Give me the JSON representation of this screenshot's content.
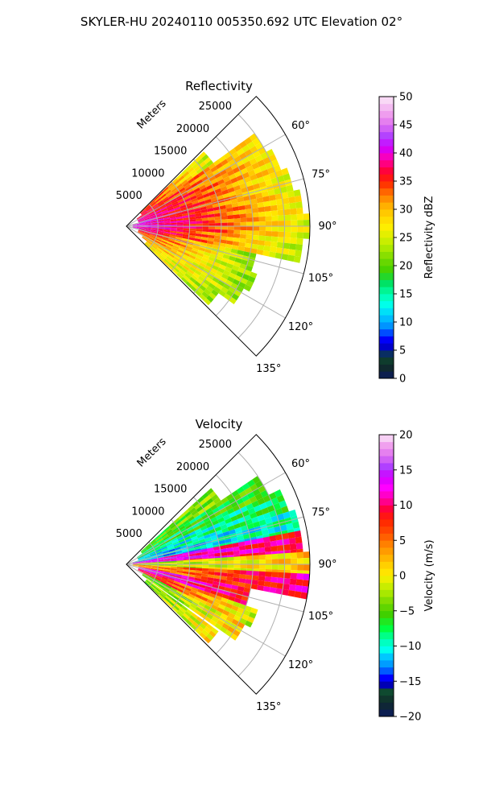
{
  "suptitle": "SKYLER-HU  20240110  005350.692 UTC Elevation 02°",
  "chart_data": [
    {
      "type": "heatmap",
      "projection": "polar-sector",
      "title": "Reflectivity",
      "range_axis_label": "Meters",
      "range_ticks": [
        5000,
        10000,
        15000,
        20000,
        25000
      ],
      "range_tick_labels": [
        "5000",
        "10000",
        "15000",
        "20000",
        "25000"
      ],
      "rmax": 29000,
      "azimuth_range_deg": [
        45,
        135
      ],
      "azimuth_ticks": [
        "60°",
        "75°",
        "90°",
        "105°",
        "120°",
        "135°"
      ],
      "grid": true,
      "colorbar": {
        "label": "Reflectivity dBZ",
        "min": 0,
        "max": 50,
        "ticks": [
          "0",
          "5",
          "10",
          "15",
          "20",
          "25",
          "30",
          "35",
          "40",
          "45",
          "50"
        ]
      },
      "rays": [
        {
          "az": 50,
          "r0": 3000,
          "r1": 17000,
          "dbz_near": 36,
          "dbz_far": 24
        },
        {
          "az": 58,
          "r0": 2000,
          "r1": 25000,
          "dbz_near": 37,
          "dbz_far": 27
        },
        {
          "az": 66,
          "r0": 2000,
          "r1": 26000,
          "dbz_near": 39,
          "dbz_far": 27
        },
        {
          "az": 74,
          "r0": 2000,
          "r1": 27000,
          "dbz_near": 40,
          "dbz_far": 25
        },
        {
          "az": 82,
          "r0": 1000,
          "r1": 28000,
          "dbz_near": 41,
          "dbz_far": 26
        },
        {
          "az": 90,
          "r0": 1000,
          "r1": 28500,
          "dbz_near": 42,
          "dbz_far": 25
        },
        {
          "az": 98,
          "r0": 1000,
          "r1": 28000,
          "dbz_near": 40,
          "dbz_far": 23
        },
        {
          "az": 106,
          "r0": 2000,
          "r1": 21000,
          "dbz_near": 37,
          "dbz_far": 21
        },
        {
          "az": 114,
          "r0": 2000,
          "r1": 22000,
          "dbz_near": 34,
          "dbz_far": 21
        },
        {
          "az": 122,
          "r0": 3000,
          "r1": 21000,
          "dbz_near": 31,
          "dbz_far": 22
        },
        {
          "az": 130,
          "r0": 4000,
          "r1": 18000,
          "dbz_near": 28,
          "dbz_far": 22
        }
      ]
    },
    {
      "type": "heatmap",
      "projection": "polar-sector",
      "title": "Velocity",
      "range_axis_label": "Meters",
      "range_ticks": [
        5000,
        10000,
        15000,
        20000,
        25000
      ],
      "range_tick_labels": [
        "5000",
        "10000",
        "15000",
        "20000",
        "25000"
      ],
      "rmax": 29000,
      "azimuth_range_deg": [
        45,
        135
      ],
      "azimuth_ticks": [
        "60°",
        "75°",
        "90°",
        "105°",
        "120°",
        "135°"
      ],
      "grid": true,
      "colorbar": {
        "label": "Velocity (m/s)",
        "min": -20,
        "max": 20,
        "ticks": [
          "−20",
          "−15",
          "−10",
          "−5",
          "0",
          "5",
          "10",
          "15",
          "20"
        ]
      },
      "rays": [
        {
          "az": 52,
          "r0": 3000,
          "r1": 18000,
          "vel_near": -6,
          "vel_far": -3
        },
        {
          "az": 60,
          "r0": 2000,
          "r1": 25000,
          "vel_near": -8,
          "vel_far": -5
        },
        {
          "az": 68,
          "r0": 2000,
          "r1": 27000,
          "vel_near": -11,
          "vel_far": -7
        },
        {
          "az": 76,
          "r0": 1000,
          "r1": 27500,
          "vel_near": -12,
          "vel_far": -9
        },
        {
          "az": 83,
          "r0": 1000,
          "r1": 28000,
          "vel_near": 14,
          "vel_far": 9
        },
        {
          "az": 90,
          "r0": 1000,
          "r1": 28500,
          "vel_near": -3,
          "vel_far": 2
        },
        {
          "az": 97,
          "r0": 1000,
          "r1": 28500,
          "vel_near": 3,
          "vel_far": 11
        },
        {
          "az": 105,
          "r0": 2000,
          "r1": 20000,
          "vel_near": 14,
          "vel_far": 8
        },
        {
          "az": 113,
          "r0": 2000,
          "r1": 22000,
          "vel_near": 10,
          "vel_far": -2
        },
        {
          "az": 121,
          "r0": 3000,
          "r1": 21000,
          "vel_near": -5,
          "vel_far": 2
        },
        {
          "az": 130,
          "r0": 4000,
          "r1": 18000,
          "vel_near": -4,
          "vel_far": 1
        }
      ]
    }
  ]
}
